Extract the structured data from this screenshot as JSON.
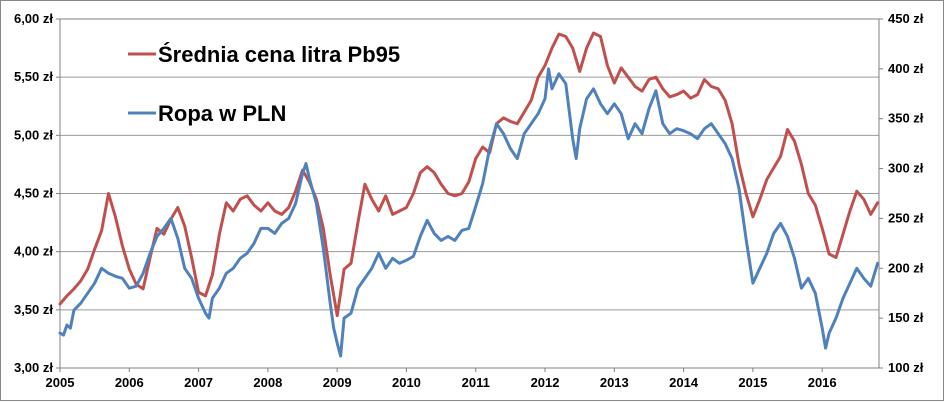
{
  "chart_data": {
    "type": "line",
    "title": "",
    "xlabel": "",
    "ylabel": "",
    "x_ticks": [
      "2005",
      "2006",
      "2007",
      "2008",
      "2009",
      "2010",
      "2011",
      "2012",
      "2013",
      "2014",
      "2015",
      "2016"
    ],
    "xlim": [
      2005.0,
      2016.82
    ],
    "y_left": {
      "ticks": [
        "3,00 zł",
        "3,50 zł",
        "4,00 zł",
        "4,50 zł",
        "5,00 zł",
        "5,50 zł",
        "6,00 zł"
      ],
      "range": [
        3.0,
        6.0
      ]
    },
    "y_right": {
      "ticks": [
        "100 zł",
        "150 zł",
        "200 zł",
        "250 zł",
        "300 zł",
        "350 zł",
        "400 zł",
        "450 zł"
      ],
      "range": [
        100,
        450
      ]
    },
    "grid": "horizontal",
    "legend_position": "top-left",
    "series": [
      {
        "name": "Średnia cena litra Pb95",
        "axis": "left",
        "color": "#C0504D",
        "points": [
          [
            2005.0,
            3.55
          ],
          [
            2005.1,
            3.62
          ],
          [
            2005.2,
            3.68
          ],
          [
            2005.3,
            3.75
          ],
          [
            2005.4,
            3.85
          ],
          [
            2005.5,
            4.02
          ],
          [
            2005.6,
            4.18
          ],
          [
            2005.7,
            4.5
          ],
          [
            2005.8,
            4.3
          ],
          [
            2005.9,
            4.05
          ],
          [
            2006.0,
            3.85
          ],
          [
            2006.1,
            3.72
          ],
          [
            2006.2,
            3.68
          ],
          [
            2006.3,
            3.95
          ],
          [
            2006.4,
            4.2
          ],
          [
            2006.5,
            4.15
          ],
          [
            2006.6,
            4.28
          ],
          [
            2006.7,
            4.38
          ],
          [
            2006.8,
            4.22
          ],
          [
            2006.9,
            3.95
          ],
          [
            2007.0,
            3.65
          ],
          [
            2007.1,
            3.62
          ],
          [
            2007.2,
            3.8
          ],
          [
            2007.3,
            4.15
          ],
          [
            2007.4,
            4.42
          ],
          [
            2007.5,
            4.35
          ],
          [
            2007.6,
            4.45
          ],
          [
            2007.7,
            4.48
          ],
          [
            2007.8,
            4.4
          ],
          [
            2007.9,
            4.35
          ],
          [
            2008.0,
            4.42
          ],
          [
            2008.1,
            4.35
          ],
          [
            2008.2,
            4.32
          ],
          [
            2008.3,
            4.38
          ],
          [
            2008.4,
            4.52
          ],
          [
            2008.5,
            4.7
          ],
          [
            2008.6,
            4.6
          ],
          [
            2008.7,
            4.45
          ],
          [
            2008.8,
            4.2
          ],
          [
            2008.9,
            3.8
          ],
          [
            2009.0,
            3.45
          ],
          [
            2009.1,
            3.85
          ],
          [
            2009.2,
            3.9
          ],
          [
            2009.3,
            4.25
          ],
          [
            2009.4,
            4.58
          ],
          [
            2009.5,
            4.45
          ],
          [
            2009.6,
            4.35
          ],
          [
            2009.7,
            4.48
          ],
          [
            2009.8,
            4.32
          ],
          [
            2009.9,
            4.35
          ],
          [
            2010.0,
            4.38
          ],
          [
            2010.1,
            4.5
          ],
          [
            2010.2,
            4.68
          ],
          [
            2010.3,
            4.73
          ],
          [
            2010.4,
            4.68
          ],
          [
            2010.5,
            4.58
          ],
          [
            2010.6,
            4.5
          ],
          [
            2010.7,
            4.48
          ],
          [
            2010.8,
            4.5
          ],
          [
            2010.9,
            4.6
          ],
          [
            2011.0,
            4.8
          ],
          [
            2011.1,
            4.9
          ],
          [
            2011.2,
            4.85
          ],
          [
            2011.3,
            5.1
          ],
          [
            2011.4,
            5.15
          ],
          [
            2011.5,
            5.12
          ],
          [
            2011.6,
            5.1
          ],
          [
            2011.7,
            5.2
          ],
          [
            2011.8,
            5.3
          ],
          [
            2011.9,
            5.5
          ],
          [
            2012.0,
            5.6
          ],
          [
            2012.1,
            5.75
          ],
          [
            2012.2,
            5.87
          ],
          [
            2012.3,
            5.85
          ],
          [
            2012.4,
            5.75
          ],
          [
            2012.5,
            5.55
          ],
          [
            2012.6,
            5.75
          ],
          [
            2012.7,
            5.88
          ],
          [
            2012.8,
            5.85
          ],
          [
            2012.9,
            5.6
          ],
          [
            2013.0,
            5.45
          ],
          [
            2013.1,
            5.58
          ],
          [
            2013.2,
            5.5
          ],
          [
            2013.3,
            5.42
          ],
          [
            2013.4,
            5.38
          ],
          [
            2013.5,
            5.48
          ],
          [
            2013.6,
            5.5
          ],
          [
            2013.7,
            5.4
          ],
          [
            2013.8,
            5.33
          ],
          [
            2013.9,
            5.35
          ],
          [
            2014.0,
            5.38
          ],
          [
            2014.1,
            5.32
          ],
          [
            2014.2,
            5.35
          ],
          [
            2014.3,
            5.48
          ],
          [
            2014.4,
            5.42
          ],
          [
            2014.5,
            5.4
          ],
          [
            2014.6,
            5.3
          ],
          [
            2014.7,
            5.1
          ],
          [
            2014.8,
            4.75
          ],
          [
            2014.9,
            4.5
          ],
          [
            2015.0,
            4.3
          ],
          [
            2015.1,
            4.45
          ],
          [
            2015.2,
            4.62
          ],
          [
            2015.3,
            4.72
          ],
          [
            2015.4,
            4.82
          ],
          [
            2015.5,
            5.05
          ],
          [
            2015.6,
            4.95
          ],
          [
            2015.7,
            4.75
          ],
          [
            2015.8,
            4.5
          ],
          [
            2015.9,
            4.4
          ],
          [
            2016.0,
            4.2
          ],
          [
            2016.1,
            3.98
          ],
          [
            2016.2,
            3.95
          ],
          [
            2016.3,
            4.15
          ],
          [
            2016.4,
            4.35
          ],
          [
            2016.5,
            4.52
          ],
          [
            2016.6,
            4.45
          ],
          [
            2016.7,
            4.32
          ],
          [
            2016.8,
            4.42
          ]
        ]
      },
      {
        "name": "Ropa w PLN",
        "axis": "right",
        "color": "#4F81BD",
        "points": [
          [
            2005.0,
            135
          ],
          [
            2005.05,
            133
          ],
          [
            2005.1,
            143
          ],
          [
            2005.15,
            140
          ],
          [
            2005.2,
            158
          ],
          [
            2005.3,
            165
          ],
          [
            2005.4,
            175
          ],
          [
            2005.5,
            185
          ],
          [
            2005.6,
            200
          ],
          [
            2005.7,
            195
          ],
          [
            2005.8,
            192
          ],
          [
            2005.9,
            190
          ],
          [
            2006.0,
            180
          ],
          [
            2006.1,
            182
          ],
          [
            2006.2,
            195
          ],
          [
            2006.3,
            215
          ],
          [
            2006.4,
            232
          ],
          [
            2006.5,
            240
          ],
          [
            2006.6,
            250
          ],
          [
            2006.7,
            230
          ],
          [
            2006.8,
            200
          ],
          [
            2006.9,
            190
          ],
          [
            2007.0,
            170
          ],
          [
            2007.1,
            155
          ],
          [
            2007.15,
            150
          ],
          [
            2007.2,
            170
          ],
          [
            2007.3,
            180
          ],
          [
            2007.4,
            195
          ],
          [
            2007.5,
            200
          ],
          [
            2007.6,
            210
          ],
          [
            2007.7,
            215
          ],
          [
            2007.8,
            225
          ],
          [
            2007.9,
            240
          ],
          [
            2008.0,
            240
          ],
          [
            2008.1,
            235
          ],
          [
            2008.2,
            245
          ],
          [
            2008.3,
            250
          ],
          [
            2008.4,
            265
          ],
          [
            2008.5,
            295
          ],
          [
            2008.55,
            305
          ],
          [
            2008.6,
            290
          ],
          [
            2008.7,
            265
          ],
          [
            2008.8,
            220
          ],
          [
            2008.9,
            165
          ],
          [
            2008.95,
            140
          ],
          [
            2009.0,
            125
          ],
          [
            2009.05,
            112
          ],
          [
            2009.1,
            150
          ],
          [
            2009.2,
            155
          ],
          [
            2009.3,
            180
          ],
          [
            2009.4,
            190
          ],
          [
            2009.5,
            200
          ],
          [
            2009.6,
            215
          ],
          [
            2009.7,
            200
          ],
          [
            2009.8,
            210
          ],
          [
            2009.9,
            205
          ],
          [
            2010.0,
            208
          ],
          [
            2010.1,
            212
          ],
          [
            2010.2,
            232
          ],
          [
            2010.3,
            248
          ],
          [
            2010.4,
            235
          ],
          [
            2010.5,
            228
          ],
          [
            2010.6,
            232
          ],
          [
            2010.7,
            228
          ],
          [
            2010.8,
            238
          ],
          [
            2010.9,
            240
          ],
          [
            2011.0,
            262
          ],
          [
            2011.1,
            285
          ],
          [
            2011.2,
            320
          ],
          [
            2011.3,
            345
          ],
          [
            2011.4,
            335
          ],
          [
            2011.5,
            320
          ],
          [
            2011.6,
            310
          ],
          [
            2011.7,
            335
          ],
          [
            2011.8,
            345
          ],
          [
            2011.9,
            355
          ],
          [
            2012.0,
            370
          ],
          [
            2012.05,
            400
          ],
          [
            2012.1,
            380
          ],
          [
            2012.2,
            395
          ],
          [
            2012.3,
            385
          ],
          [
            2012.4,
            330
          ],
          [
            2012.45,
            310
          ],
          [
            2012.5,
            340
          ],
          [
            2012.6,
            370
          ],
          [
            2012.7,
            380
          ],
          [
            2012.8,
            365
          ],
          [
            2012.9,
            355
          ],
          [
            2013.0,
            365
          ],
          [
            2013.1,
            355
          ],
          [
            2013.2,
            330
          ],
          [
            2013.3,
            345
          ],
          [
            2013.4,
            335
          ],
          [
            2013.5,
            360
          ],
          [
            2013.6,
            378
          ],
          [
            2013.7,
            345
          ],
          [
            2013.8,
            335
          ],
          [
            2013.9,
            340
          ],
          [
            2014.0,
            338
          ],
          [
            2014.1,
            335
          ],
          [
            2014.2,
            330
          ],
          [
            2014.3,
            340
          ],
          [
            2014.4,
            345
          ],
          [
            2014.5,
            335
          ],
          [
            2014.6,
            325
          ],
          [
            2014.7,
            310
          ],
          [
            2014.8,
            280
          ],
          [
            2014.9,
            230
          ],
          [
            2015.0,
            185
          ],
          [
            2015.1,
            200
          ],
          [
            2015.2,
            215
          ],
          [
            2015.3,
            235
          ],
          [
            2015.4,
            245
          ],
          [
            2015.5,
            232
          ],
          [
            2015.6,
            210
          ],
          [
            2015.7,
            180
          ],
          [
            2015.8,
            190
          ],
          [
            2015.9,
            175
          ],
          [
            2016.0,
            140
          ],
          [
            2016.05,
            120
          ],
          [
            2016.1,
            135
          ],
          [
            2016.2,
            150
          ],
          [
            2016.3,
            170
          ],
          [
            2016.4,
            185
          ],
          [
            2016.5,
            200
          ],
          [
            2016.6,
            190
          ],
          [
            2016.7,
            182
          ],
          [
            2016.8,
            205
          ]
        ]
      }
    ]
  }
}
